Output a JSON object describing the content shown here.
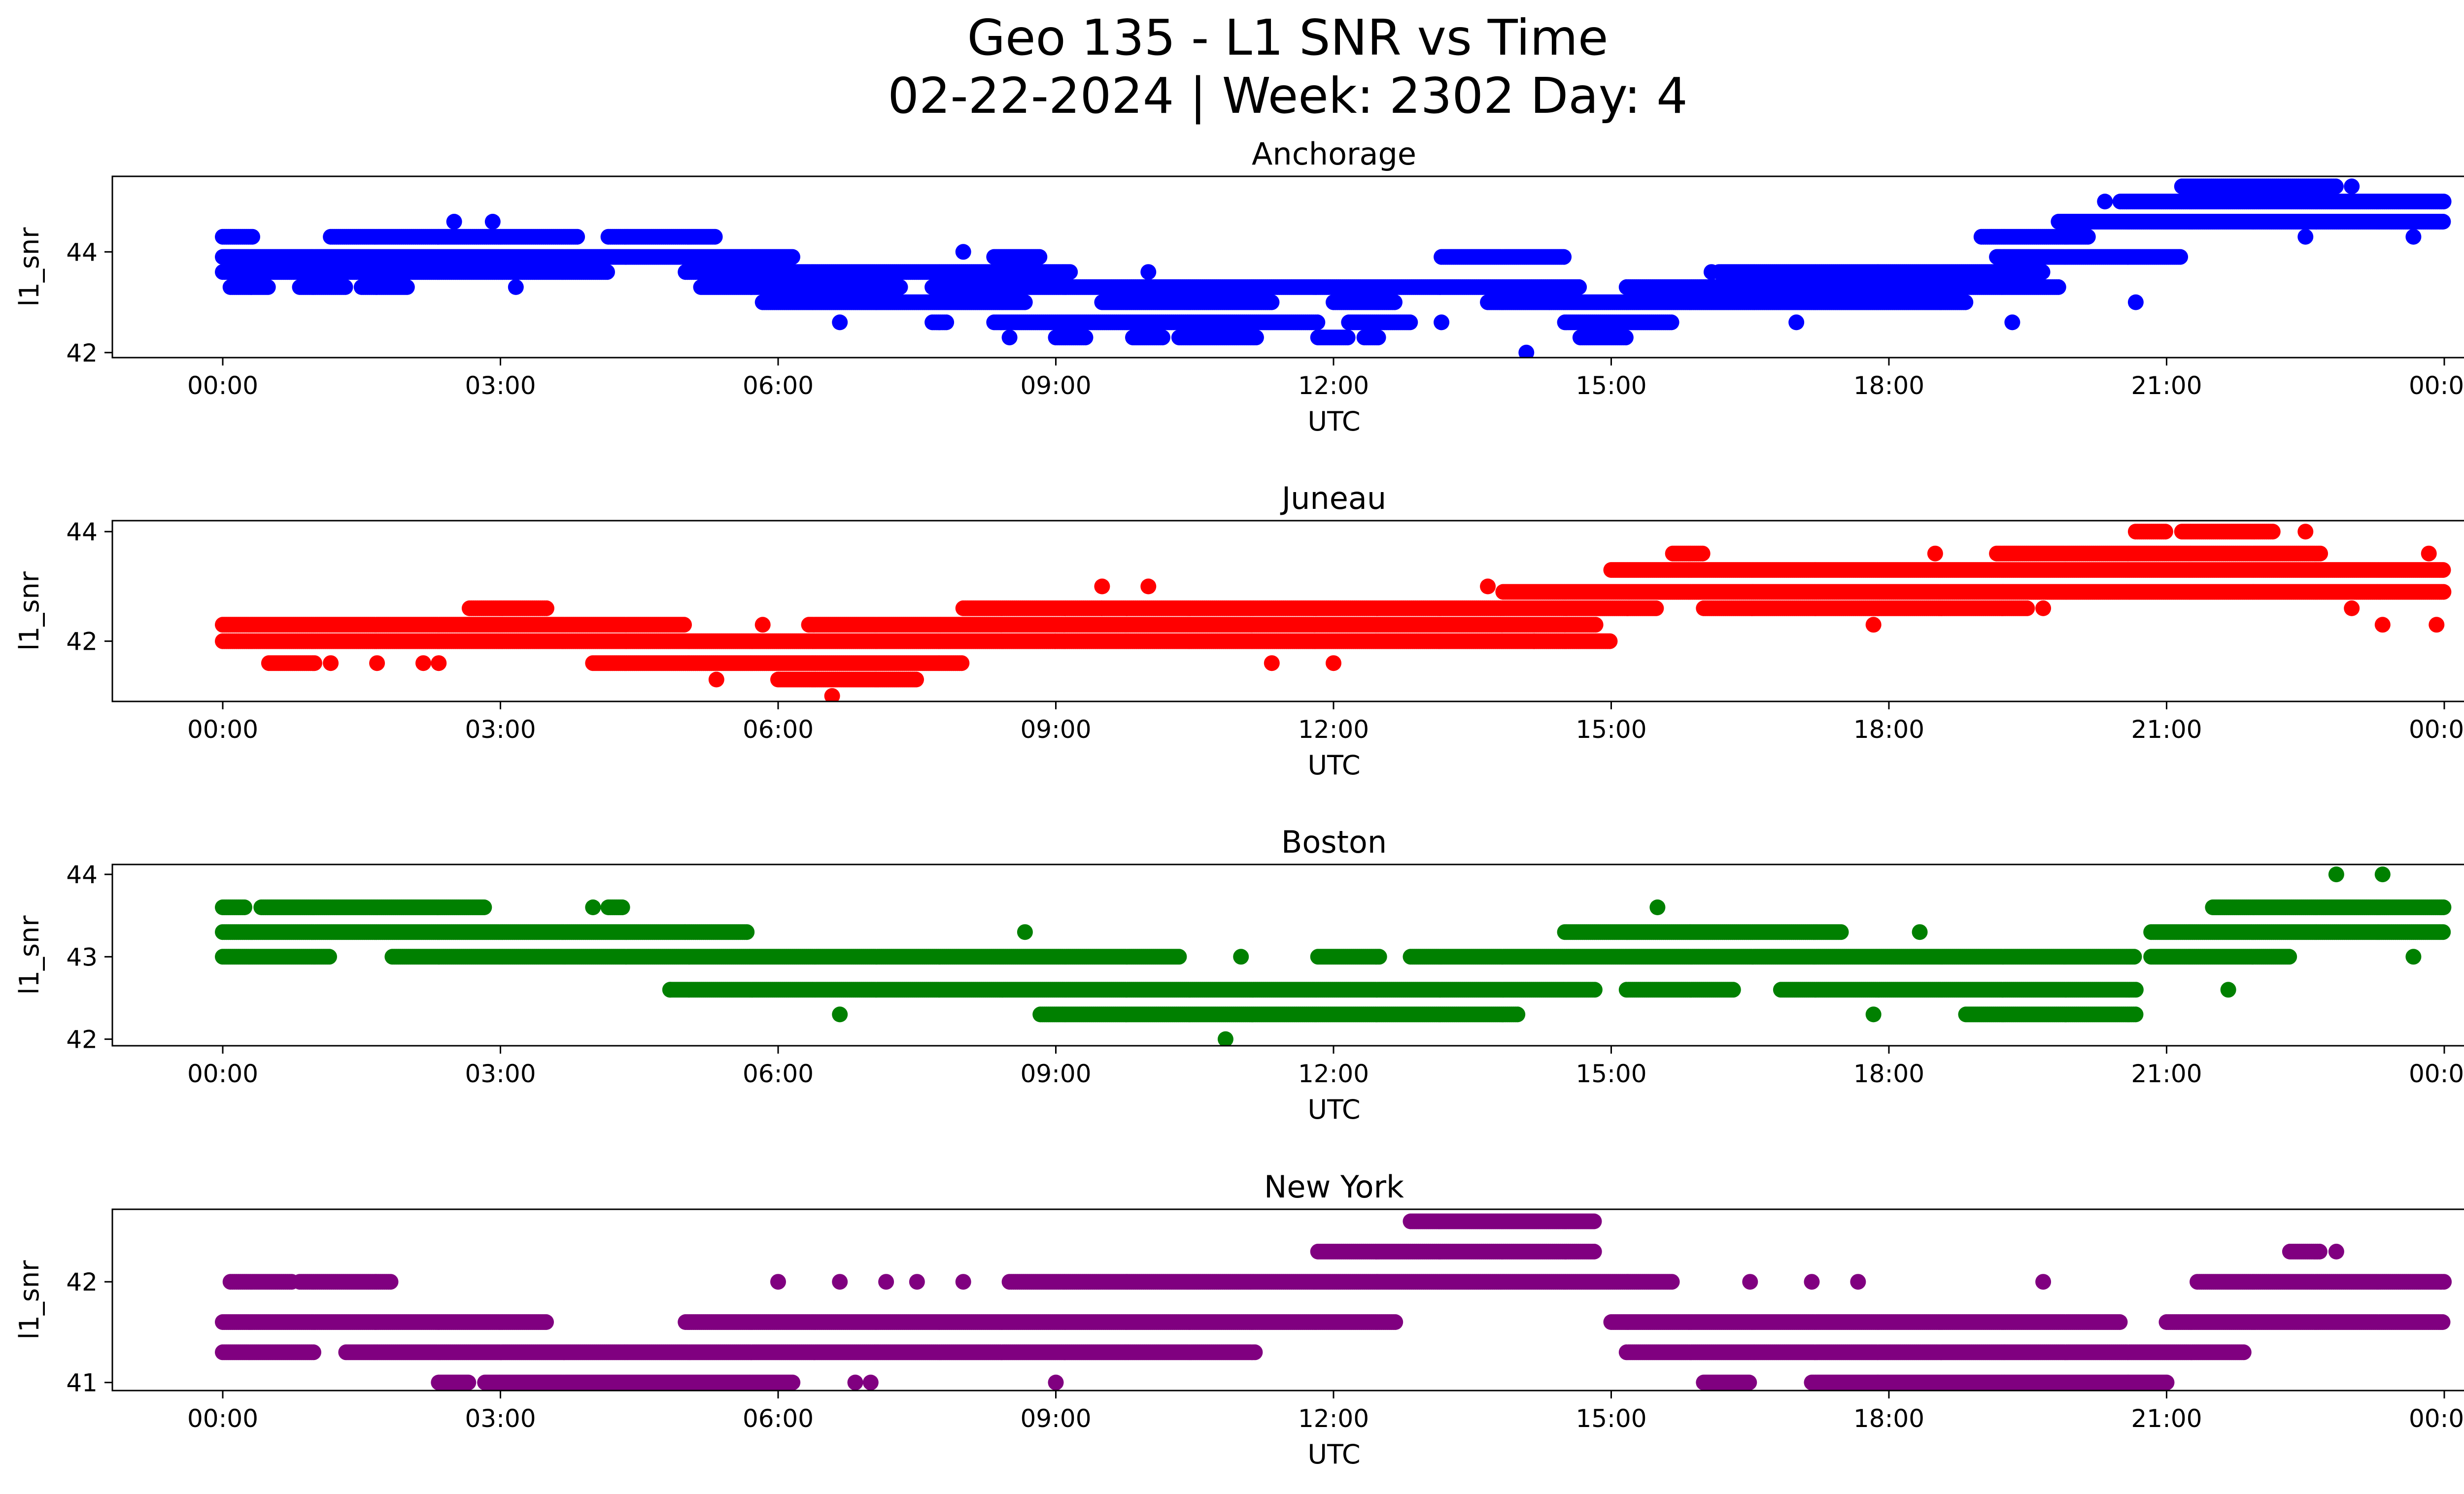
{
  "title": {
    "line1": "Geo 135 - L1 SNR vs Time",
    "line2": "02-22-2024 | Week: 2302 Day: 4"
  },
  "chart_data": [
    {
      "type": "scatter",
      "title": "Anchorage",
      "xlabel": "UTC",
      "ylabel": "l1_snr",
      "color": "#0000ff",
      "xlim": [
        "00:00",
        "24:00"
      ],
      "ylim": [
        41.9,
        45.5
      ],
      "yticks": [
        "42",
        "44"
      ],
      "xticks": [
        "00:00",
        "03:00",
        "06:00",
        "09:00",
        "12:00",
        "15:00",
        "18:00",
        "21:00",
        "00:00"
      ],
      "grid": false,
      "legend": "none",
      "bands": [
        {
          "y": 43.9,
          "segments": [
            [
              "00:00",
              "06:10"
            ],
            [
              "08:20",
              "08:50"
            ],
            [
              "13:10",
              "14:30"
            ],
            [
              "19:10",
              "21:10"
            ]
          ]
        },
        {
          "y": 43.6,
          "segments": [
            [
              "00:00",
              "04:10"
            ],
            [
              "05:00",
              "09:10"
            ],
            [
              "16:10",
              "19:40"
            ]
          ]
        },
        {
          "y": 43.3,
          "segments": [
            [
              "00:05",
              "00:30"
            ],
            [
              "00:50",
              "01:20"
            ],
            [
              "01:30",
              "02:00"
            ],
            [
              "05:10",
              "07:20"
            ],
            [
              "07:40",
              "14:40"
            ],
            [
              "15:10",
              "19:50"
            ]
          ]
        },
        {
          "y": 43.0,
          "segments": [
            [
              "05:50",
              "08:40"
            ],
            [
              "09:30",
              "11:20"
            ],
            [
              "12:00",
              "12:40"
            ],
            [
              "13:40",
              "14:20"
            ],
            [
              "14:20",
              "18:50"
            ]
          ]
        },
        {
          "y": 42.6,
          "segments": [
            [
              "07:40",
              "07:50"
            ],
            [
              "08:20",
              "11:50"
            ],
            [
              "12:10",
              "12:50"
            ],
            [
              "14:30",
              "15:40"
            ]
          ]
        },
        {
          "y": 42.3,
          "segments": [
            [
              "09:00",
              "09:20"
            ],
            [
              "09:50",
              "10:10"
            ],
            [
              "10:20",
              "11:10"
            ],
            [
              "11:50",
              "12:10"
            ],
            [
              "12:20",
              "12:30"
            ],
            [
              "14:40",
              "15:10"
            ]
          ]
        },
        {
          "y": 44.3,
          "segments": [
            [
              "00:00",
              "00:20"
            ],
            [
              "01:10",
              "03:50"
            ],
            [
              "04:10",
              "05:20"
            ],
            [
              "19:00",
              "20:10"
            ]
          ]
        },
        {
          "y": 44.6,
          "segments": [
            [
              "19:50",
              "24:00"
            ]
          ]
        },
        {
          "y": 45.0,
          "segments": [
            [
              "20:30",
              "24:00"
            ]
          ]
        },
        {
          "y": 45.3,
          "segments": [
            [
              "21:10",
              "22:50"
            ]
          ]
        }
      ],
      "points": [
        {
          "x": "02:30",
          "y": 44.6
        },
        {
          "x": "02:55",
          "y": 44.6
        },
        {
          "x": "03:10",
          "y": 43.3
        },
        {
          "x": "06:40",
          "y": 42.6
        },
        {
          "x": "08:00",
          "y": 44.0
        },
        {
          "x": "08:30",
          "y": 42.3
        },
        {
          "x": "10:00",
          "y": 43.6
        },
        {
          "x": "13:10",
          "y": 42.6
        },
        {
          "x": "14:05",
          "y": 42.0
        },
        {
          "x": "16:05",
          "y": 43.6
        },
        {
          "x": "17:00",
          "y": 42.6
        },
        {
          "x": "19:20",
          "y": 42.6
        },
        {
          "x": "20:20",
          "y": 45.0
        },
        {
          "x": "20:40",
          "y": 43.0
        },
        {
          "x": "22:30",
          "y": 44.3
        },
        {
          "x": "23:00",
          "y": 45.3
        },
        {
          "x": "23:40",
          "y": 44.3
        }
      ]
    },
    {
      "type": "scatter",
      "title": "Juneau",
      "xlabel": "UTC",
      "ylabel": "l1_snr",
      "color": "#ff0000",
      "xlim": [
        "00:00",
        "24:00"
      ],
      "ylim": [
        40.9,
        44.2
      ],
      "yticks": [
        "42",
        "44"
      ],
      "xticks": [
        "00:00",
        "03:00",
        "06:00",
        "09:00",
        "12:00",
        "15:00",
        "18:00",
        "21:00",
        "00:00"
      ],
      "grid": false,
      "legend": "none",
      "bands": [
        {
          "y": 42.3,
          "segments": [
            [
              "00:00",
              "05:00"
            ],
            [
              "06:20",
              "14:50"
            ]
          ]
        },
        {
          "y": 42.0,
          "segments": [
            [
              "00:00",
              "09:00"
            ],
            [
              "09:00",
              "15:00"
            ]
          ]
        },
        {
          "y": 41.6,
          "segments": [
            [
              "00:30",
              "01:00"
            ],
            [
              "04:00",
              "08:00"
            ]
          ]
        },
        {
          "y": 41.3,
          "segments": [
            [
              "06:00",
              "07:30"
            ]
          ]
        },
        {
          "y": 42.6,
          "segments": [
            [
              "02:40",
              "03:30"
            ],
            [
              "08:00",
              "09:30"
            ],
            [
              "09:30",
              "15:30"
            ],
            [
              "16:00",
              "19:30"
            ]
          ]
        },
        {
          "y": 42.9,
          "segments": [
            [
              "13:50",
              "24:00"
            ]
          ]
        },
        {
          "y": 43.3,
          "segments": [
            [
              "15:00",
              "24:00"
            ]
          ]
        },
        {
          "y": 43.6,
          "segments": [
            [
              "15:40",
              "16:00"
            ],
            [
              "19:10",
              "22:40"
            ]
          ]
        },
        {
          "y": 44.0,
          "segments": [
            [
              "20:40",
              "21:00"
            ],
            [
              "21:10",
              "22:10"
            ]
          ]
        }
      ],
      "points": [
        {
          "x": "01:10",
          "y": 41.6
        },
        {
          "x": "01:40",
          "y": 41.6
        },
        {
          "x": "02:10",
          "y": 41.6
        },
        {
          "x": "02:20",
          "y": 41.6
        },
        {
          "x": "05:20",
          "y": 41.3
        },
        {
          "x": "05:50",
          "y": 42.3
        },
        {
          "x": "06:35",
          "y": 41.0
        },
        {
          "x": "09:30",
          "y": 43.0
        },
        {
          "x": "10:00",
          "y": 43.0
        },
        {
          "x": "11:20",
          "y": 41.6
        },
        {
          "x": "12:00",
          "y": 41.6
        },
        {
          "x": "13:40",
          "y": 43.0
        },
        {
          "x": "14:10",
          "y": 42.0
        },
        {
          "x": "17:50",
          "y": 42.3
        },
        {
          "x": "18:30",
          "y": 43.6
        },
        {
          "x": "19:40",
          "y": 42.6
        },
        {
          "x": "22:30",
          "y": 44.0
        },
        {
          "x": "23:00",
          "y": 42.6
        },
        {
          "x": "23:20",
          "y": 42.3
        },
        {
          "x": "23:50",
          "y": 43.6
        },
        {
          "x": "23:55",
          "y": 42.3
        }
      ]
    },
    {
      "type": "scatter",
      "title": "Boston",
      "xlabel": "UTC",
      "ylabel": "l1_snr",
      "color": "#008000",
      "xlim": [
        "00:00",
        "24:00"
      ],
      "ylim": [
        41.92,
        44.12
      ],
      "yticks": [
        "42",
        "43",
        "44"
      ],
      "xticks": [
        "00:00",
        "03:00",
        "06:00",
        "09:00",
        "12:00",
        "15:00",
        "18:00",
        "21:00",
        "00:00"
      ],
      "grid": false,
      "legend": "none",
      "bands": [
        {
          "y": 43.6,
          "segments": [
            [
              "00:00",
              "00:15"
            ],
            [
              "00:25",
              "02:50"
            ],
            [
              "04:10",
              "04:20"
            ],
            [
              "21:30",
              "24:00"
            ]
          ]
        },
        {
          "y": 43.3,
          "segments": [
            [
              "00:00",
              "05:00"
            ],
            [
              "05:00",
              "05:40"
            ],
            [
              "14:30",
              "17:30"
            ],
            [
              "20:50",
              "24:00"
            ]
          ]
        },
        {
          "y": 43.0,
          "segments": [
            [
              "00:00",
              "01:10"
            ],
            [
              "01:50",
              "10:20"
            ],
            [
              "11:50",
              "12:30"
            ],
            [
              "12:50",
              "20:40"
            ],
            [
              "20:50",
              "22:20"
            ]
          ]
        },
        {
          "y": 42.6,
          "segments": [
            [
              "04:50",
              "14:50"
            ],
            [
              "15:10",
              "16:20"
            ],
            [
              "16:50",
              "20:40"
            ]
          ]
        },
        {
          "y": 42.3,
          "segments": [
            [
              "08:50",
              "14:00"
            ],
            [
              "18:50",
              "20:40"
            ]
          ]
        }
      ],
      "points": [
        {
          "x": "04:00",
          "y": 43.6
        },
        {
          "x": "04:50",
          "y": 42.6
        },
        {
          "x": "06:40",
          "y": 42.3
        },
        {
          "x": "08:40",
          "y": 43.3
        },
        {
          "x": "10:50",
          "y": 42.0
        },
        {
          "x": "11:00",
          "y": 43.0
        },
        {
          "x": "15:30",
          "y": 43.6
        },
        {
          "x": "17:50",
          "y": 42.3
        },
        {
          "x": "18:20",
          "y": 43.3
        },
        {
          "x": "21:40",
          "y": 42.6
        },
        {
          "x": "22:50",
          "y": 44.0
        },
        {
          "x": "23:20",
          "y": 44.0
        },
        {
          "x": "23:40",
          "y": 43.0
        }
      ]
    },
    {
      "type": "scatter",
      "title": "New York",
      "xlabel": "UTC",
      "ylabel": "l1_snr",
      "color": "#800080",
      "xlim": [
        "00:00",
        "24:00"
      ],
      "ylim": [
        40.92,
        42.72
      ],
      "yticks": [
        "41",
        "42"
      ],
      "xticks": [
        "00:00",
        "03:00",
        "06:00",
        "09:00",
        "12:00",
        "15:00",
        "18:00",
        "21:00",
        "00:00"
      ],
      "grid": false,
      "legend": "none",
      "bands": [
        {
          "y": 42.0,
          "segments": [
            [
              "00:05",
              "00:45"
            ],
            [
              "00:50",
              "01:50"
            ],
            [
              "08:30",
              "15:40"
            ],
            [
              "21:20",
              "24:00"
            ]
          ]
        },
        {
          "y": 41.6,
          "segments": [
            [
              "00:00",
              "03:30"
            ],
            [
              "05:00",
              "12:40"
            ],
            [
              "15:00",
              "20:30"
            ],
            [
              "21:00",
              "24:00"
            ]
          ]
        },
        {
          "y": 41.3,
          "segments": [
            [
              "00:00",
              "01:00"
            ],
            [
              "01:20",
              "11:10"
            ],
            [
              "15:10",
              "21:50"
            ]
          ]
        },
        {
          "y": 41.0,
          "segments": [
            [
              "02:20",
              "02:40"
            ],
            [
              "02:50",
              "06:10"
            ],
            [
              "16:00",
              "16:30"
            ],
            [
              "17:10",
              "21:00"
            ]
          ]
        },
        {
          "y": 42.3,
          "segments": [
            [
              "11:50",
              "14:50"
            ],
            [
              "22:20",
              "22:40"
            ]
          ]
        },
        {
          "y": 42.6,
          "segments": [
            [
              "12:50",
              "14:50"
            ]
          ]
        }
      ],
      "points": [
        {
          "x": "06:00",
          "y": 42.0
        },
        {
          "x": "06:50",
          "y": 41.0
        },
        {
          "x": "07:00",
          "y": 41.0
        },
        {
          "x": "06:40",
          "y": 42.0
        },
        {
          "x": "07:10",
          "y": 42.0
        },
        {
          "x": "07:30",
          "y": 42.0
        },
        {
          "x": "08:00",
          "y": 42.0
        },
        {
          "x": "09:00",
          "y": 41.0
        },
        {
          "x": "16:30",
          "y": 42.0
        },
        {
          "x": "17:10",
          "y": 42.0
        },
        {
          "x": "17:40",
          "y": 42.0
        },
        {
          "x": "19:40",
          "y": 42.0
        },
        {
          "x": "22:50",
          "y": 42.3
        }
      ]
    }
  ]
}
